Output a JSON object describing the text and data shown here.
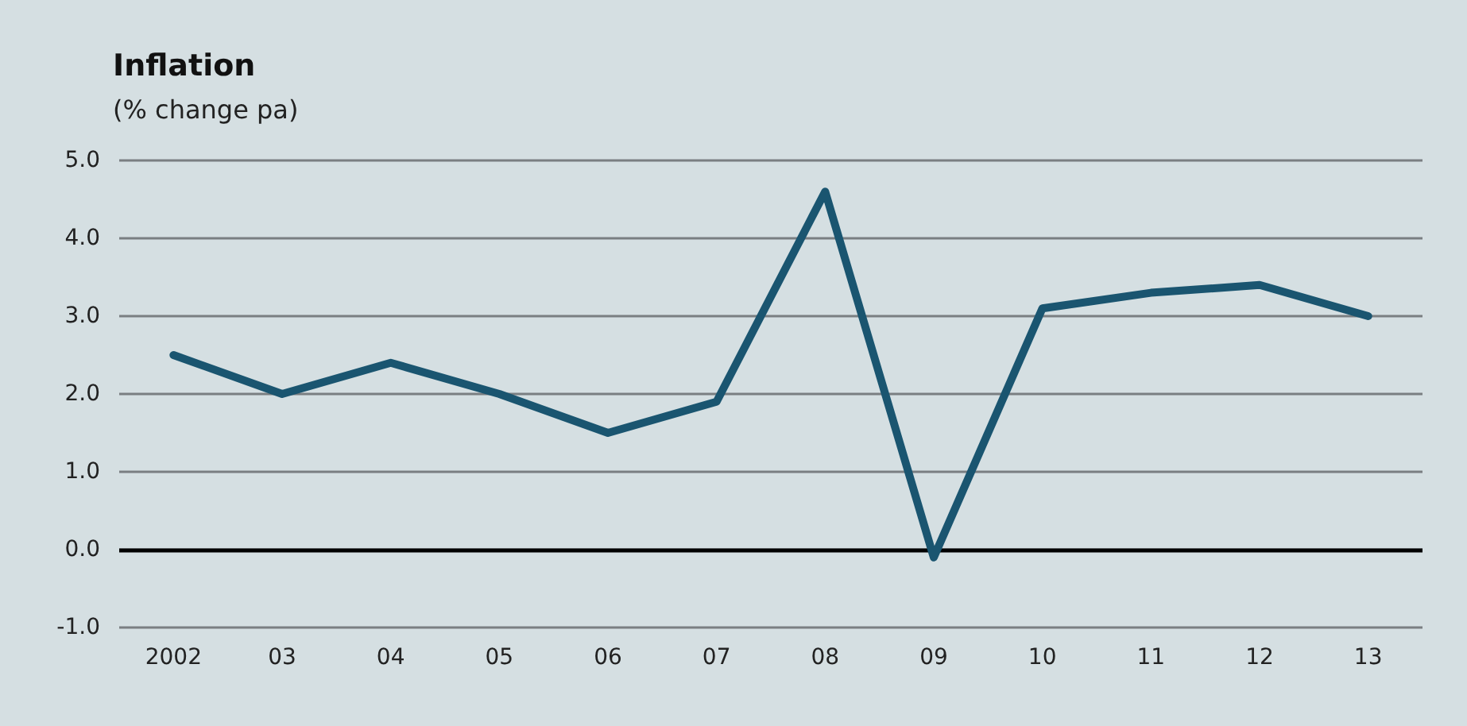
{
  "chart_data": {
    "type": "line",
    "title": "Inflation",
    "subtitle": "(% change pa)",
    "categories": [
      "2002",
      "03",
      "04",
      "05",
      "06",
      "07",
      "08",
      "09",
      "10",
      "11",
      "12",
      "13"
    ],
    "series": [
      {
        "color": "#1a5570",
        "values": [
          2.5,
          2.0,
          2.4,
          2.0,
          1.5,
          1.9,
          4.6,
          -0.1,
          3.1,
          3.3,
          3.4,
          3.0
        ]
      }
    ],
    "ylim": [
      -1,
      5
    ],
    "yticks": [
      {
        "value": -1,
        "label": "-1.0"
      },
      {
        "value": 0,
        "label": "0.0"
      },
      {
        "value": 1,
        "label": "1.0"
      },
      {
        "value": 2,
        "label": "2.0"
      },
      {
        "value": 3,
        "label": "3.0"
      },
      {
        "value": 4,
        "label": "4.0"
      },
      {
        "value": 5,
        "label": "5.0"
      }
    ],
    "ref_lines": [
      {
        "axis": "y",
        "value": 0,
        "color": "#000000"
      }
    ],
    "grid": "y",
    "marker": "none",
    "line_style": "solid"
  }
}
